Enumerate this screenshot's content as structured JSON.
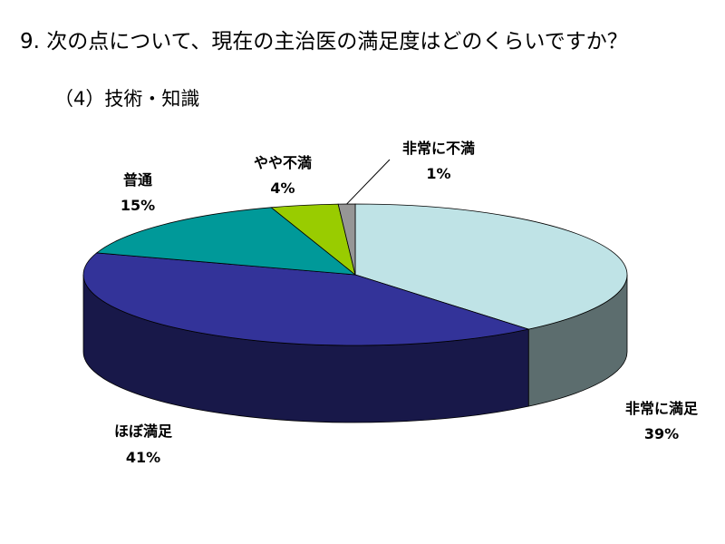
{
  "title": "9. 次の点について、現在の主治医の満足度はどのくらいですか？",
  "subtitle": "（4）技術・知識",
  "chart_data": {
    "type": "pie",
    "title": "9. 次の点について、現在の主治医の満足度はどのくらいですか？",
    "subtitle": "（4）技術・知識",
    "categories": [
      "非常に満足",
      "ほぼ満足",
      "普通",
      "やや不満",
      "非常に不満"
    ],
    "values": [
      39,
      41,
      15,
      4,
      1
    ],
    "labels": [
      "39%",
      "41%",
      "15%",
      "4%",
      "1%"
    ],
    "colors": [
      "#BFE3E6",
      "#333399",
      "#009999",
      "#99CC00",
      "#969696"
    ]
  }
}
